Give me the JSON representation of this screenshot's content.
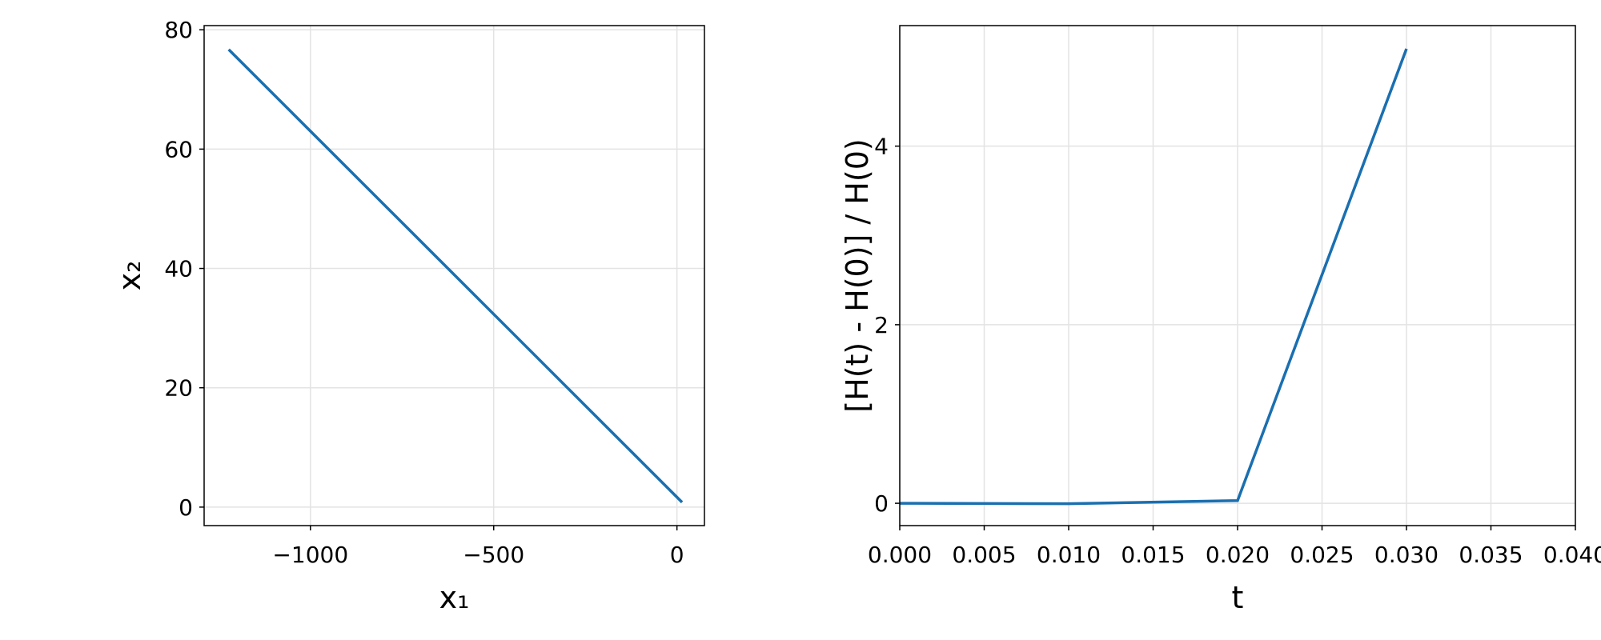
{
  "chart_data": [
    {
      "type": "line",
      "xlabel": "x₁",
      "ylabel": "x₂",
      "x": [
        -1223,
        14
      ],
      "series": [
        {
          "color": "#1a6fb0",
          "values": [
            76.7,
            0.8
          ]
        }
      ],
      "xlim": [
        -1290,
        75
      ],
      "ylim": [
        -3.1,
        80.7
      ],
      "xticks": [
        {
          "value": -1000,
          "label": "−1000"
        },
        {
          "value": -500,
          "label": "−500"
        },
        0
      ],
      "yticks": [
        0,
        20,
        40,
        60,
        80
      ],
      "grid": true
    },
    {
      "type": "line",
      "xlabel": "t",
      "ylabel": "[H(t) - H(0)] / H(0)",
      "x": [
        0,
        0.01,
        0.02,
        0.03
      ],
      "series": [
        {
          "color": "#1a6fb0",
          "values": [
            0,
            -0.005,
            0.03,
            5.09
          ]
        }
      ],
      "xlim": [
        0,
        0.04
      ],
      "ylim": [
        -0.25,
        5.35
      ],
      "xticks": [
        {
          "value": 0,
          "label": "0.000"
        },
        {
          "value": 0.005,
          "label": "0.005"
        },
        {
          "value": 0.01,
          "label": "0.010"
        },
        {
          "value": 0.015,
          "label": "0.015"
        },
        {
          "value": 0.02,
          "label": "0.020"
        },
        {
          "value": 0.025,
          "label": "0.025"
        },
        {
          "value": 0.03,
          "label": "0.030"
        },
        {
          "value": 0.035,
          "label": "0.035"
        },
        {
          "value": 0.04,
          "label": "0.040"
        }
      ],
      "yticks": [
        0,
        2,
        4
      ],
      "grid": true
    }
  ]
}
